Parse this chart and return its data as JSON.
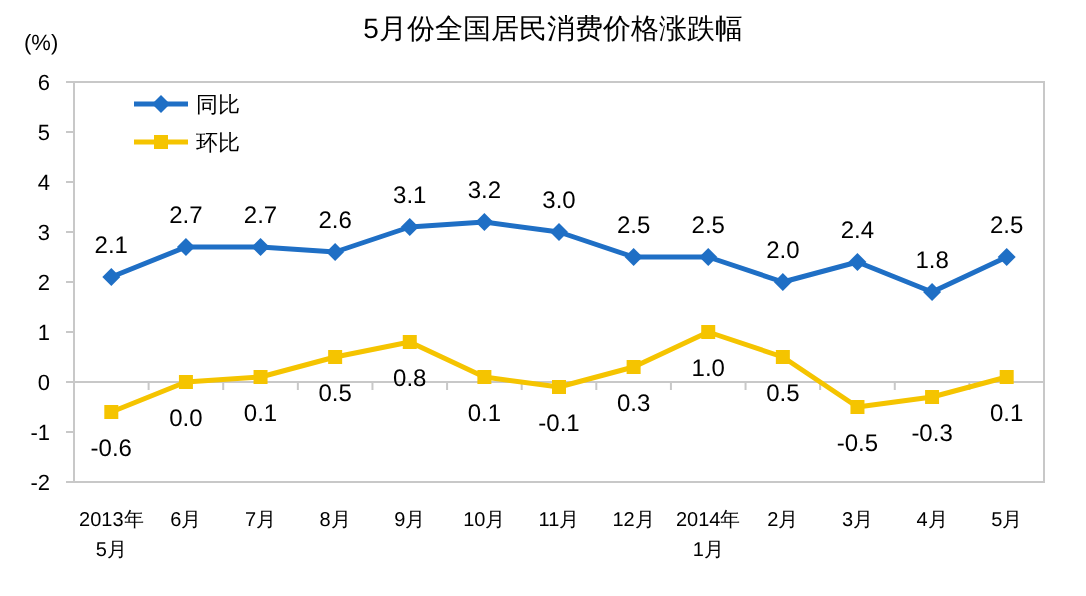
{
  "chart_data": {
    "type": "line",
    "title": "5月份全国居民消费价格涨跌幅",
    "ylabel": "(%)",
    "categories": [
      "2013年\n5月",
      "6月",
      "7月",
      "8月",
      "9月",
      "10月",
      "11月",
      "12月",
      "2014年\n1月",
      "2月",
      "3月",
      "4月",
      "5月"
    ],
    "series": [
      {
        "name": "同比",
        "color": "#1f6fc5",
        "marker": "diamond",
        "values": [
          2.1,
          2.7,
          2.7,
          2.6,
          3.1,
          3.2,
          3.0,
          2.5,
          2.5,
          2.0,
          2.4,
          1.8,
          2.5
        ],
        "value_labels": [
          "2.1",
          "2.7",
          "2.7",
          "2.6",
          "3.1",
          "3.2",
          "3.0",
          "2.5",
          "2.5",
          "2.0",
          "2.4",
          "1.8",
          "2.5"
        ]
      },
      {
        "name": "环比",
        "color": "#f5c400",
        "marker": "square",
        "values": [
          -0.6,
          0.0,
          0.1,
          0.5,
          0.8,
          0.1,
          -0.1,
          0.3,
          1.0,
          0.5,
          -0.5,
          -0.3,
          0.1
        ],
        "value_labels": [
          "-0.6",
          "0.0",
          "0.1",
          "0.5",
          "0.8",
          "0.1",
          "-0.1",
          "0.3",
          "1.0",
          "0.5",
          "-0.5",
          "-0.3",
          "0.1"
        ]
      }
    ],
    "ylim": [
      -2,
      6
    ],
    "yticks": [
      -2,
      -1,
      0,
      1,
      2,
      3,
      4,
      5,
      6
    ],
    "legend": "top left"
  }
}
